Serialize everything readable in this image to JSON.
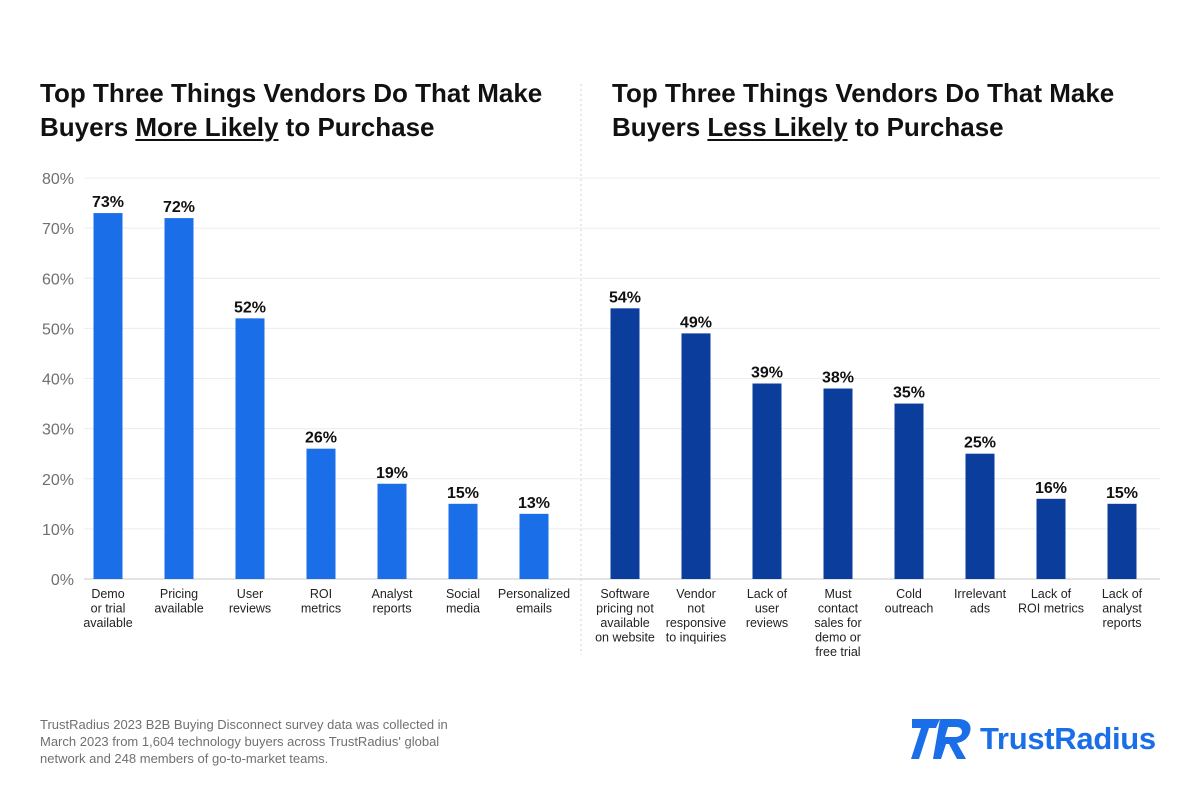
{
  "titles": {
    "left": {
      "pre": "Top Three Things Vendors Do That Make Buyers ",
      "emph": "More Likely",
      "post": " to Purchase"
    },
    "right": {
      "pre": "Top Three Things Vendors Do That Make Buyers ",
      "emph": "Less Likely",
      "post": " to Purchase"
    }
  },
  "chart_data": [
    {
      "type": "bar",
      "categories": [
        [
          "Demo",
          "or trial",
          "available"
        ],
        [
          "Pricing",
          "available"
        ],
        [
          "User",
          "reviews"
        ],
        [
          "ROI",
          "metrics"
        ],
        [
          "Analyst",
          "reports"
        ],
        [
          "Social",
          "media"
        ],
        [
          "Personalized",
          "emails"
        ]
      ],
      "values": [
        73,
        72,
        52,
        26,
        19,
        15,
        13
      ],
      "value_labels": [
        "73%",
        "72%",
        "52%",
        "26%",
        "19%",
        "15%",
        "13%"
      ],
      "y_ticks": [
        "0%",
        "10%",
        "20%",
        "30%",
        "40%",
        "50%",
        "60%",
        "70%",
        "80%"
      ],
      "ylim": [
        0,
        80
      ],
      "grid": true,
      "bar_color": "#1a6ee8"
    },
    {
      "type": "bar",
      "categories": [
        [
          "Software",
          "pricing not",
          "available",
          "on website"
        ],
        [
          "Vendor",
          "not",
          "responsive",
          "to inquiries"
        ],
        [
          "Lack of",
          "user",
          "reviews"
        ],
        [
          "Must",
          "contact",
          "sales for",
          "demo or",
          "free trial"
        ],
        [
          "Cold",
          "outreach"
        ],
        [
          "Irrelevant",
          "ads"
        ],
        [
          "Lack of",
          "ROI metrics"
        ],
        [
          "Lack of",
          "analyst",
          "reports"
        ]
      ],
      "values": [
        54,
        49,
        39,
        38,
        35,
        25,
        16,
        15
      ],
      "value_labels": [
        "54%",
        "49%",
        "39%",
        "38%",
        "35%",
        "25%",
        "16%",
        "15%"
      ],
      "ylim": [
        0,
        80
      ],
      "grid": true,
      "bar_color": "#0b3d9c"
    }
  ],
  "footer": {
    "note": "TrustRadius 2023 B2B Buying Disconnect survey data was collected in March 2023 from 1,604 technology buyers across TrustRadius' global network and 248 members of go-to-market teams."
  },
  "logo": {
    "text": "TrustRadius",
    "mark_letters": "TR",
    "color": "#1a6ee8",
    "icon": "trustradius-logo-mark"
  }
}
